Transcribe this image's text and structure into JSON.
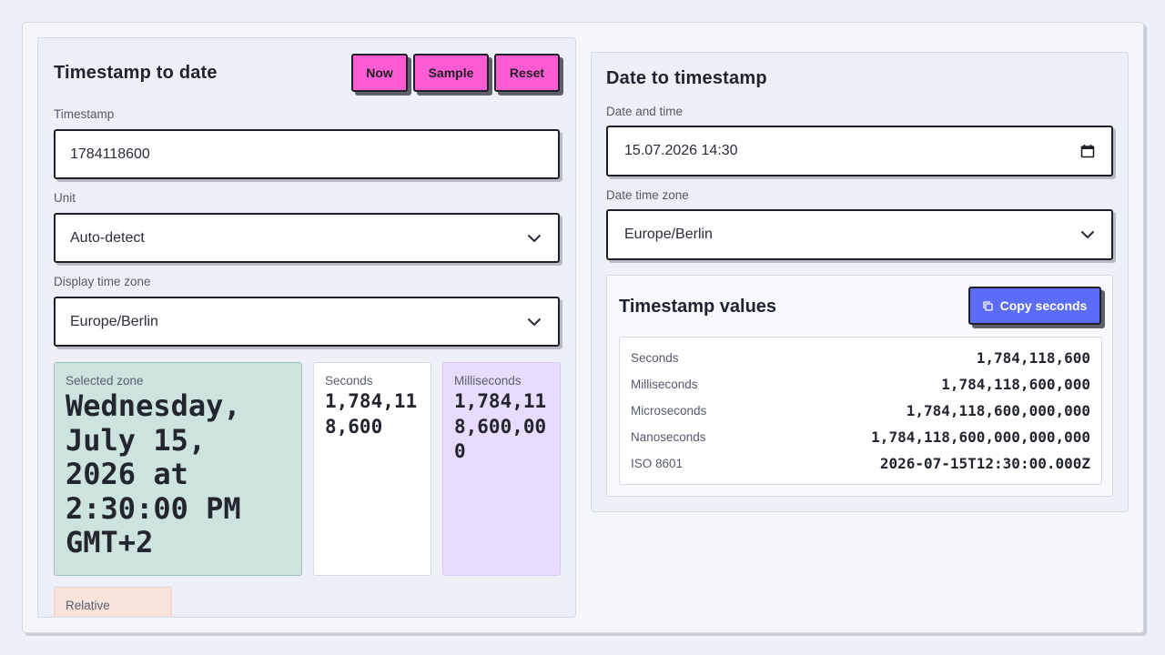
{
  "left_panel": {
    "title": "Timestamp to date",
    "buttons": {
      "now": "Now",
      "sample": "Sample",
      "reset": "Reset"
    },
    "timestamp_label": "Timestamp",
    "timestamp_value": "1784118600",
    "unit_label": "Unit",
    "unit_value": "Auto-detect",
    "display_tz_label": "Display time zone",
    "display_tz_value": "Europe/Berlin",
    "selected_zone": {
      "label": "Selected zone",
      "value": "Wednesday, July 15, 2026 at 2:30:00 PM GMT+2"
    },
    "seconds_card": {
      "label": "Seconds",
      "value": "1,784,118,600"
    },
    "milliseconds_card": {
      "label": "Milliseconds",
      "value": "1,784,118,600,000"
    },
    "relative_card": {
      "label": "Relative"
    }
  },
  "right_panel": {
    "title": "Date to timestamp",
    "datetime_label": "Date and time",
    "datetime_value": "15.07.2026 14:30",
    "date_tz_label": "Date time zone",
    "date_tz_value": "Europe/Berlin",
    "values": {
      "title": "Timestamp values",
      "copy_button": "Copy seconds",
      "rows": [
        {
          "key": "Seconds",
          "value": "1,784,118,600"
        },
        {
          "key": "Milliseconds",
          "value": "1,784,118,600,000"
        },
        {
          "key": "Microseconds",
          "value": "1,784,118,600,000,000"
        },
        {
          "key": "Nanoseconds",
          "value": "1,784,118,600,000,000,000"
        },
        {
          "key": "ISO 8601",
          "value": "2026-07-15T12:30:00.000Z"
        }
      ]
    }
  },
  "colors": {
    "accent_pink": "#ff5bd2",
    "accent_blue": "#5b6cf6",
    "selected_zone_bg": "#cde3de",
    "milliseconds_bg": "#e7dcfb",
    "relative_bg": "#f7e3da"
  },
  "icons": {
    "chevron": "chevron-down-icon",
    "calendar": "calendar-icon",
    "copy": "copy-icon"
  }
}
